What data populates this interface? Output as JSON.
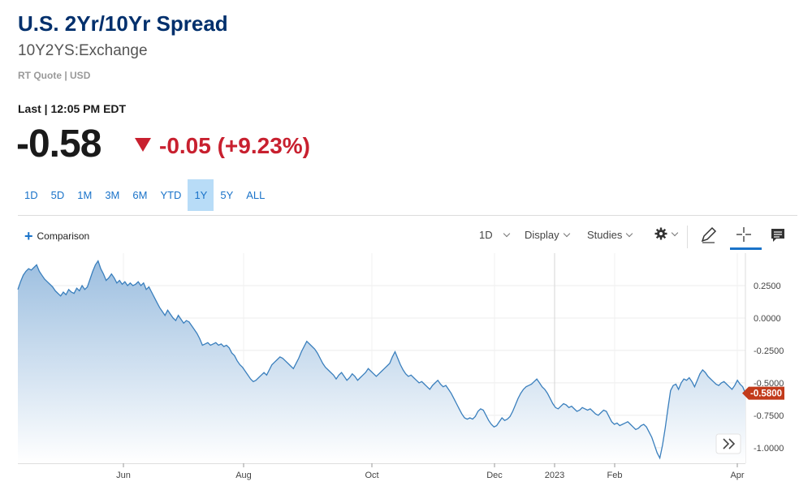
{
  "header": {
    "title": "U.S. 2Yr/10Yr Spread",
    "symbol": "10Y2YS:Exchange",
    "quote_meta": "RT Quote | USD",
    "last_label": "Last | 12:05 PM EDT",
    "price": "-0.58",
    "change": "-0.05 (+9.23%)",
    "change_color": "#c8202f"
  },
  "ranges": [
    "1D",
    "5D",
    "1M",
    "3M",
    "6M",
    "YTD",
    "1Y",
    "5Y",
    "ALL"
  ],
  "active_range": "1Y",
  "toolbar": {
    "comparison": "Comparison",
    "interval": "1D",
    "display": "Display",
    "studies": "Studies",
    "icons": [
      "gear-icon",
      "pencil-icon",
      "crosshair-icon",
      "comment-icon"
    ]
  },
  "chart_data": {
    "type": "area",
    "x_tick_labels": [
      "Jun",
      "Aug",
      "Oct",
      "Dec",
      "2023",
      "Feb",
      "Apr"
    ],
    "y_tick_labels": [
      "0.2500",
      "0.0000",
      "-0.2500",
      "-0.5000",
      "-0.7500",
      "-1.0000"
    ],
    "ylim": [
      -1.12,
      0.5
    ],
    "last_value_label": "-0.5800",
    "last_value": -0.58,
    "line_color": "#3a7fbd",
    "series": [
      {
        "values": [
          0.22,
          0.28,
          0.33,
          0.36,
          0.38,
          0.37,
          0.39,
          0.41,
          0.36,
          0.33,
          0.3,
          0.28,
          0.26,
          0.24,
          0.21,
          0.19,
          0.17,
          0.2,
          0.18,
          0.22,
          0.2,
          0.19,
          0.23,
          0.21,
          0.25,
          0.22,
          0.24,
          0.3,
          0.36,
          0.41,
          0.44,
          0.38,
          0.34,
          0.29,
          0.31,
          0.34,
          0.31,
          0.27,
          0.29,
          0.26,
          0.28,
          0.25,
          0.27,
          0.25,
          0.26,
          0.28,
          0.25,
          0.27,
          0.22,
          0.24,
          0.2,
          0.16,
          0.12,
          0.08,
          0.05,
          0.02,
          0.06,
          0.03,
          0.0,
          -0.02,
          0.02,
          -0.01,
          -0.04,
          -0.02,
          -0.03,
          -0.06,
          -0.09,
          -0.12,
          -0.16,
          -0.21,
          -0.2,
          -0.19,
          -0.21,
          -0.2,
          -0.19,
          -0.21,
          -0.2,
          -0.22,
          -0.21,
          -0.23,
          -0.27,
          -0.29,
          -0.33,
          -0.36,
          -0.38,
          -0.41,
          -0.44,
          -0.47,
          -0.49,
          -0.48,
          -0.46,
          -0.44,
          -0.42,
          -0.44,
          -0.4,
          -0.36,
          -0.34,
          -0.32,
          -0.3,
          -0.31,
          -0.33,
          -0.35,
          -0.37,
          -0.39,
          -0.35,
          -0.31,
          -0.26,
          -0.22,
          -0.18,
          -0.2,
          -0.22,
          -0.24,
          -0.27,
          -0.31,
          -0.35,
          -0.38,
          -0.4,
          -0.42,
          -0.44,
          -0.47,
          -0.44,
          -0.42,
          -0.45,
          -0.48,
          -0.46,
          -0.43,
          -0.45,
          -0.48,
          -0.46,
          -0.44,
          -0.42,
          -0.39,
          -0.41,
          -0.43,
          -0.45,
          -0.43,
          -0.41,
          -0.39,
          -0.37,
          -0.35,
          -0.3,
          -0.26,
          -0.31,
          -0.36,
          -0.4,
          -0.43,
          -0.45,
          -0.44,
          -0.46,
          -0.48,
          -0.5,
          -0.49,
          -0.51,
          -0.53,
          -0.55,
          -0.52,
          -0.5,
          -0.48,
          -0.51,
          -0.53,
          -0.52,
          -0.55,
          -0.58,
          -0.62,
          -0.66,
          -0.7,
          -0.74,
          -0.77,
          -0.78,
          -0.77,
          -0.78,
          -0.76,
          -0.72,
          -0.7,
          -0.71,
          -0.75,
          -0.79,
          -0.82,
          -0.84,
          -0.83,
          -0.8,
          -0.77,
          -0.79,
          -0.78,
          -0.76,
          -0.72,
          -0.67,
          -0.62,
          -0.58,
          -0.55,
          -0.53,
          -0.52,
          -0.51,
          -0.49,
          -0.47,
          -0.5,
          -0.53,
          -0.55,
          -0.58,
          -0.62,
          -0.66,
          -0.69,
          -0.7,
          -0.68,
          -0.66,
          -0.67,
          -0.69,
          -0.68,
          -0.7,
          -0.72,
          -0.71,
          -0.69,
          -0.7,
          -0.71,
          -0.7,
          -0.72,
          -0.74,
          -0.75,
          -0.73,
          -0.71,
          -0.72,
          -0.76,
          -0.8,
          -0.82,
          -0.81,
          -0.83,
          -0.82,
          -0.81,
          -0.8,
          -0.82,
          -0.84,
          -0.86,
          -0.85,
          -0.83,
          -0.82,
          -0.84,
          -0.88,
          -0.92,
          -0.98,
          -1.04,
          -1.08,
          -0.98,
          -0.85,
          -0.7,
          -0.56,
          -0.52,
          -0.51,
          -0.55,
          -0.5,
          -0.47,
          -0.48,
          -0.46,
          -0.49,
          -0.53,
          -0.48,
          -0.43,
          -0.4,
          -0.42,
          -0.45,
          -0.47,
          -0.49,
          -0.51,
          -0.52,
          -0.5,
          -0.49,
          -0.51,
          -0.53,
          -0.55,
          -0.52,
          -0.48,
          -0.51,
          -0.53,
          -0.58
        ]
      }
    ]
  }
}
